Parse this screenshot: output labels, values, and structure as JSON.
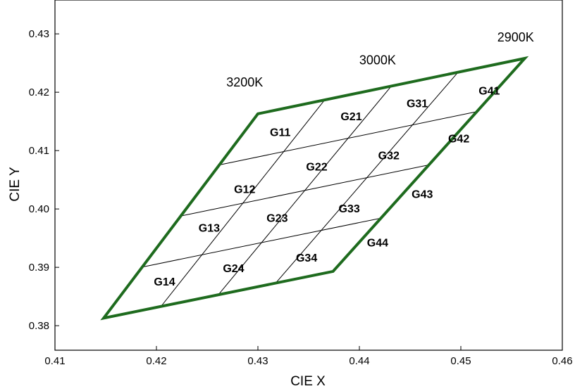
{
  "chart_data": {
    "type": "diagram",
    "xlabel": "CIE X",
    "ylabel": "CIE Y",
    "xlim": [
      0.41,
      0.46
    ],
    "ylim": [
      0.3758,
      0.4358
    ],
    "xticks": [
      "0.41",
      "0.42",
      "0.43",
      "0.44",
      "0.45",
      "0.46"
    ],
    "yticks": [
      "0.38",
      "0.39",
      "0.40",
      "0.41",
      "0.42",
      "0.43"
    ],
    "xtick_values": [
      0.41,
      0.42,
      0.43,
      0.44,
      0.45,
      0.46
    ],
    "ytick_values": [
      0.38,
      0.39,
      0.4,
      0.41,
      0.42,
      0.43
    ],
    "grid": false,
    "outline_color": "#1e6b1e",
    "corners": {
      "top_left": [
        0.43,
        0.4163
      ],
      "top_right": [
        0.4563,
        0.4258
      ],
      "bottom_right": [
        0.4374,
        0.3893
      ],
      "bottom_left": [
        0.4148,
        0.3813
      ]
    },
    "cct_labels": [
      {
        "text": "3200K",
        "x": 0.4287,
        "y": 0.421
      },
      {
        "text": "3000K",
        "x": 0.4418,
        "y": 0.4248
      },
      {
        "text": "2900K",
        "x": 0.4554,
        "y": 0.4287
      }
    ],
    "bins": [
      {
        "name": "G11",
        "x": 0.4322,
        "y": 0.4125
      },
      {
        "name": "G21",
        "x": 0.4392,
        "y": 0.4152
      },
      {
        "name": "G31",
        "x": 0.4457,
        "y": 0.4174
      },
      {
        "name": "G41",
        "x": 0.4528,
        "y": 0.4196
      },
      {
        "name": "G12",
        "x": 0.4287,
        "y": 0.4027
      },
      {
        "name": "G22",
        "x": 0.4358,
        "y": 0.4066
      },
      {
        "name": "G32",
        "x": 0.4429,
        "y": 0.4085
      },
      {
        "name": "G42",
        "x": 0.4498,
        "y": 0.4114
      },
      {
        "name": "G13",
        "x": 0.4252,
        "y": 0.3961
      },
      {
        "name": "G23",
        "x": 0.4319,
        "y": 0.3978
      },
      {
        "name": "G33",
        "x": 0.439,
        "y": 0.3994
      },
      {
        "name": "G43",
        "x": 0.4462,
        "y": 0.4019
      },
      {
        "name": "G14",
        "x": 0.4208,
        "y": 0.3869
      },
      {
        "name": "G24",
        "x": 0.4276,
        "y": 0.3892
      },
      {
        "name": "G34",
        "x": 0.4348,
        "y": 0.391
      },
      {
        "name": "G44",
        "x": 0.4418,
        "y": 0.3936
      }
    ]
  }
}
